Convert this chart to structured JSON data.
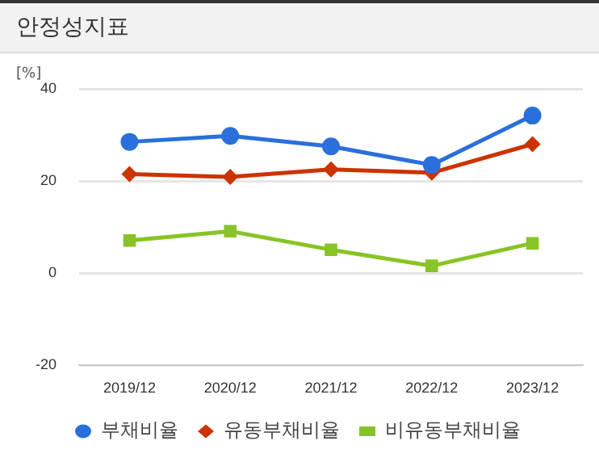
{
  "chart_data": {
    "type": "line",
    "title": "안정성지표",
    "ylabel": "[%]",
    "categories": [
      "2019/12",
      "2020/12",
      "2021/12",
      "2022/12",
      "2023/12"
    ],
    "series": [
      {
        "name": "부채비율",
        "color": "#2a6fdb",
        "marker": "circle",
        "values": [
          28.5,
          29.8,
          27.5,
          23.5,
          34.2
        ]
      },
      {
        "name": "유동부채비율",
        "color": "#cc3300",
        "marker": "diamond",
        "values": [
          21.5,
          20.9,
          22.5,
          21.8,
          28.0
        ]
      },
      {
        "name": "비유동부채비율",
        "color": "#88c425",
        "marker": "square",
        "values": [
          7.1,
          9.1,
          5.1,
          1.6,
          6.5
        ]
      }
    ],
    "ylim": [
      -20,
      40
    ],
    "yticks": [
      -20,
      0,
      20,
      40
    ],
    "grid": "y",
    "legend": "bottom",
    "line_style": "solid"
  }
}
